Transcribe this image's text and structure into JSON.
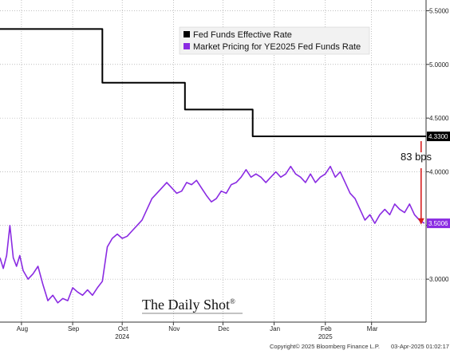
{
  "chart_data": {
    "type": "line",
    "title": "",
    "xlabel": "",
    "ylabel": "",
    "ylim": [
      2.6,
      5.6
    ],
    "x_start": "2024-07-19",
    "x_end": "2025-04-03",
    "y_ticks": [
      "3.0000",
      "3.5000",
      "4.0000",
      "4.5000",
      "5.0000",
      "5.5000"
    ],
    "x_tick_labels": [
      {
        "label": "Aug",
        "date": "2024-08-01"
      },
      {
        "label": "Sep",
        "date": "2024-09-01"
      },
      {
        "label": "Oct",
        "date": "2024-10-01"
      },
      {
        "label": "Nov",
        "date": "2024-11-01"
      },
      {
        "label": "Dec",
        "date": "2024-12-01"
      },
      {
        "label": "Jan",
        "date": "2025-01-01"
      },
      {
        "label": "Feb",
        "date": "2025-02-01"
      },
      {
        "label": "Mar",
        "date": "2025-03-01"
      }
    ],
    "year_labels": [
      {
        "label": "2024",
        "date": "2024-10-01"
      },
      {
        "label": "2025",
        "date": "2025-02-01"
      }
    ],
    "legend": {
      "placement": "top-center",
      "entries": [
        "Fed Funds Effective Rate",
        "Market Pricing for YE2025 Fed Funds Rate"
      ]
    },
    "grid": true,
    "series": [
      {
        "name": "Fed Funds Effective Rate",
        "color": "#000000",
        "step": true,
        "points": [
          [
            "2024-07-19",
            5.33
          ],
          [
            "2024-09-18",
            5.33
          ],
          [
            "2024-09-19",
            4.83
          ],
          [
            "2024-11-07",
            4.83
          ],
          [
            "2024-11-08",
            4.58
          ],
          [
            "2024-12-18",
            4.58
          ],
          [
            "2024-12-19",
            4.33
          ],
          [
            "2025-04-03",
            4.33
          ]
        ],
        "last_value_label": "4.3300"
      },
      {
        "name": "Market Pricing for YE2025 Fed Funds Rate",
        "color": "#8a2be2",
        "step": false,
        "points": [
          [
            "2024-07-19",
            3.2
          ],
          [
            "2024-07-21",
            3.1
          ],
          [
            "2024-07-23",
            3.22
          ],
          [
            "2024-07-25",
            3.5
          ],
          [
            "2024-07-27",
            3.2
          ],
          [
            "2024-07-29",
            3.12
          ],
          [
            "2024-07-31",
            3.22
          ],
          [
            "2024-08-02",
            3.08
          ],
          [
            "2024-08-05",
            3.0
          ],
          [
            "2024-08-08",
            3.05
          ],
          [
            "2024-08-11",
            3.12
          ],
          [
            "2024-08-14",
            2.95
          ],
          [
            "2024-08-17",
            2.8
          ],
          [
            "2024-08-20",
            2.85
          ],
          [
            "2024-08-23",
            2.78
          ],
          [
            "2024-08-26",
            2.82
          ],
          [
            "2024-08-29",
            2.8
          ],
          [
            "2024-09-01",
            2.92
          ],
          [
            "2024-09-04",
            2.88
          ],
          [
            "2024-09-07",
            2.85
          ],
          [
            "2024-09-10",
            2.9
          ],
          [
            "2024-09-13",
            2.85
          ],
          [
            "2024-09-16",
            2.92
          ],
          [
            "2024-09-19",
            2.98
          ],
          [
            "2024-09-22",
            3.3
          ],
          [
            "2024-09-25",
            3.38
          ],
          [
            "2024-09-28",
            3.42
          ],
          [
            "2024-10-01",
            3.38
          ],
          [
            "2024-10-04",
            3.4
          ],
          [
            "2024-10-07",
            3.45
          ],
          [
            "2024-10-10",
            3.5
          ],
          [
            "2024-10-13",
            3.55
          ],
          [
            "2024-10-16",
            3.65
          ],
          [
            "2024-10-19",
            3.75
          ],
          [
            "2024-10-22",
            3.8
          ],
          [
            "2024-10-25",
            3.85
          ],
          [
            "2024-10-28",
            3.9
          ],
          [
            "2024-10-31",
            3.85
          ],
          [
            "2024-11-03",
            3.8
          ],
          [
            "2024-11-06",
            3.82
          ],
          [
            "2024-11-09",
            3.9
          ],
          [
            "2024-11-12",
            3.88
          ],
          [
            "2024-11-15",
            3.92
          ],
          [
            "2024-11-18",
            3.85
          ],
          [
            "2024-11-21",
            3.78
          ],
          [
            "2024-11-24",
            3.72
          ],
          [
            "2024-11-27",
            3.75
          ],
          [
            "2024-11-30",
            3.82
          ],
          [
            "2024-12-03",
            3.8
          ],
          [
            "2024-12-06",
            3.88
          ],
          [
            "2024-12-09",
            3.9
          ],
          [
            "2024-12-12",
            3.95
          ],
          [
            "2024-12-15",
            4.02
          ],
          [
            "2024-12-18",
            3.95
          ],
          [
            "2024-12-21",
            3.98
          ],
          [
            "2024-12-24",
            3.95
          ],
          [
            "2024-12-27",
            3.9
          ],
          [
            "2024-12-30",
            3.95
          ],
          [
            "2025-01-02",
            4.0
          ],
          [
            "2025-01-05",
            3.95
          ],
          [
            "2025-01-08",
            3.98
          ],
          [
            "2025-01-11",
            4.05
          ],
          [
            "2025-01-14",
            3.98
          ],
          [
            "2025-01-17",
            3.95
          ],
          [
            "2025-01-20",
            3.9
          ],
          [
            "2025-01-23",
            3.98
          ],
          [
            "2025-01-26",
            3.9
          ],
          [
            "2025-01-29",
            3.95
          ],
          [
            "2025-02-01",
            3.98
          ],
          [
            "2025-02-04",
            4.05
          ],
          [
            "2025-02-07",
            3.95
          ],
          [
            "2025-02-10",
            4.0
          ],
          [
            "2025-02-13",
            3.9
          ],
          [
            "2025-02-16",
            3.8
          ],
          [
            "2025-02-19",
            3.75
          ],
          [
            "2025-02-22",
            3.65
          ],
          [
            "2025-02-25",
            3.55
          ],
          [
            "2025-02-28",
            3.6
          ],
          [
            "2025-03-03",
            3.52
          ],
          [
            "2025-03-06",
            3.6
          ],
          [
            "2025-03-09",
            3.65
          ],
          [
            "2025-03-12",
            3.6
          ],
          [
            "2025-03-15",
            3.7
          ],
          [
            "2025-03-18",
            3.65
          ],
          [
            "2025-03-21",
            3.62
          ],
          [
            "2025-03-24",
            3.7
          ],
          [
            "2025-03-27",
            3.6
          ],
          [
            "2025-03-30",
            3.55
          ],
          [
            "2025-04-02",
            3.52
          ]
        ],
        "last_value_label": "3.5006"
      }
    ],
    "annotations": [
      {
        "text": "83 bps",
        "from": 4.33,
        "to": 3.5,
        "color": "#d62020"
      }
    ]
  },
  "branding": {
    "logo_text": "The Daily Shot",
    "trademark": "®",
    "copyright": "Copyright© 2025 Bloomberg Finance L.P.",
    "timestamp": "03-Apr-2025 01:02:17"
  },
  "colors": {
    "background": "#ffffff",
    "grid": "#9a9a9a",
    "fed_funds_line": "#000000",
    "market_pricing_line": "#8a2be2",
    "arrow": "#d62020"
  }
}
